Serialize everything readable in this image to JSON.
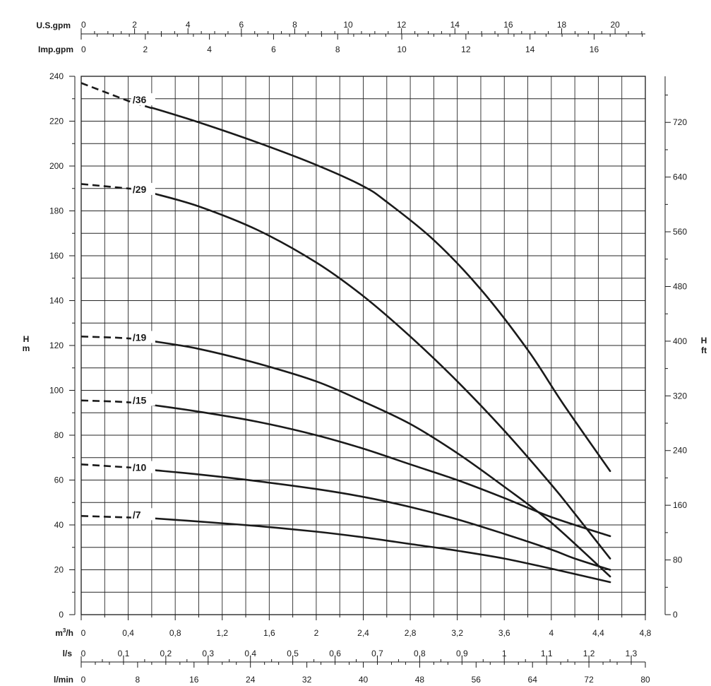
{
  "chart_data": {
    "type": "line",
    "axes": {
      "us_gpm": {
        "label": "U.S.gpm",
        "ticks": [
          "0",
          "2",
          "4",
          "6",
          "8",
          "10",
          "12",
          "14",
          "16",
          "18",
          "20"
        ]
      },
      "imp_gpm": {
        "label": "Imp.gpm",
        "ticks": [
          "0",
          "2",
          "4",
          "6",
          "8",
          "10",
          "12",
          "14",
          "16"
        ]
      },
      "x": {
        "label": "m³/h",
        "label_base": "m",
        "label_sup": "3",
        "label_rest": "/h",
        "ticks": [
          "0",
          "0,4",
          "0,8",
          "1,2",
          "1,6",
          "2",
          "2,4",
          "2,8",
          "3,2",
          "3,6",
          "4",
          "4,4",
          "4,8"
        ],
        "range": [
          0,
          4.8
        ]
      },
      "ls": {
        "label": "l/s",
        "ticks": [
          "0",
          "0,1",
          "0,2",
          "0,3",
          "0,4",
          "0,5",
          "0,6",
          "0,7",
          "0,8",
          "0,9",
          "1",
          "1,1",
          "1,2",
          "1,3"
        ]
      },
      "lmin": {
        "label": "l/min",
        "ticks": [
          "0",
          "8",
          "16",
          "24",
          "32",
          "40",
          "48",
          "56",
          "64",
          "72",
          "80"
        ]
      },
      "y": {
        "label_top": "H",
        "label_bottom": "m",
        "ticks": [
          "0",
          "20",
          "40",
          "60",
          "80",
          "100",
          "120",
          "140",
          "160",
          "180",
          "200",
          "220",
          "240"
        ],
        "range": [
          0,
          240
        ]
      },
      "y_ft": {
        "label_top": "H",
        "label_bottom": "ft",
        "ticks": [
          "0",
          "80",
          "160",
          "240",
          "320",
          "400",
          "480",
          "560",
          "640",
          "720"
        ]
      }
    },
    "grid": true,
    "series": [
      {
        "name": "/36",
        "dashed": [
          [
            0,
            237
          ],
          [
            0.2,
            233
          ],
          [
            0.4,
            229
          ],
          [
            0.6,
            225.8
          ]
        ],
        "solid": [
          [
            0.6,
            226
          ],
          [
            1.0,
            219.5
          ],
          [
            1.5,
            210.5
          ],
          [
            2.0,
            200.5
          ],
          [
            2.4,
            191
          ],
          [
            2.6,
            184
          ],
          [
            3.0,
            167
          ],
          [
            3.4,
            145
          ],
          [
            3.8,
            118
          ],
          [
            4.1,
            94
          ],
          [
            4.5,
            64
          ],
          [
            4.5,
            64
          ]
        ],
        "label_at": [
          0.6,
          229
        ]
      },
      {
        "name": "/29",
        "dashed": [
          [
            0,
            192
          ],
          [
            0.3,
            190.5
          ],
          [
            0.6,
            189
          ]
        ],
        "solid": [
          [
            0.6,
            188
          ],
          [
            1.0,
            182
          ],
          [
            1.5,
            171.5
          ],
          [
            2.0,
            157
          ],
          [
            2.4,
            142
          ],
          [
            2.8,
            124
          ],
          [
            3.2,
            104
          ],
          [
            3.6,
            82
          ],
          [
            4.0,
            58
          ],
          [
            4.2,
            45
          ],
          [
            4.5,
            25
          ]
        ],
        "label_at": [
          0.6,
          189
        ]
      },
      {
        "name": "/19",
        "dashed": [
          [
            0,
            124
          ],
          [
            0.3,
            123.5
          ],
          [
            0.6,
            122.5
          ]
        ],
        "solid": [
          [
            0.6,
            122
          ],
          [
            1.0,
            118.5
          ],
          [
            1.5,
            112
          ],
          [
            2.0,
            104
          ],
          [
            2.4,
            95
          ],
          [
            2.8,
            85
          ],
          [
            3.2,
            72
          ],
          [
            3.6,
            57
          ],
          [
            4.0,
            41
          ],
          [
            4.5,
            17
          ]
        ],
        "label_at": [
          0.6,
          123
        ]
      },
      {
        "name": "/15",
        "dashed": [
          [
            0,
            95.5
          ],
          [
            0.3,
            95
          ],
          [
            0.6,
            94
          ]
        ],
        "solid": [
          [
            0.6,
            93.5
          ],
          [
            1.0,
            90.5
          ],
          [
            1.5,
            86
          ],
          [
            2.0,
            80
          ],
          [
            2.4,
            74
          ],
          [
            2.8,
            67
          ],
          [
            3.2,
            60
          ],
          [
            3.6,
            52
          ],
          [
            4.0,
            43.5
          ],
          [
            4.5,
            35
          ]
        ],
        "label_at": [
          0.6,
          95
        ]
      },
      {
        "name": "/10",
        "dashed": [
          [
            0,
            67
          ],
          [
            0.3,
            66
          ],
          [
            0.6,
            65
          ]
        ],
        "solid": [
          [
            0.6,
            64.5
          ],
          [
            1.0,
            62.5
          ],
          [
            1.5,
            59.5
          ],
          [
            2.0,
            56
          ],
          [
            2.4,
            52.5
          ],
          [
            2.8,
            48
          ],
          [
            3.2,
            42.5
          ],
          [
            3.6,
            36
          ],
          [
            4.0,
            29
          ],
          [
            4.2,
            25
          ],
          [
            4.5,
            20
          ]
        ],
        "label_at": [
          0.6,
          65
        ]
      },
      {
        "name": "/7",
        "dashed": [
          [
            0,
            44
          ],
          [
            0.3,
            43.5
          ],
          [
            0.6,
            43
          ]
        ],
        "solid": [
          [
            0.6,
            43
          ],
          [
            1.0,
            41.5
          ],
          [
            1.5,
            39.5
          ],
          [
            2.0,
            37
          ],
          [
            2.4,
            34.5
          ],
          [
            2.8,
            31.5
          ],
          [
            3.2,
            28.5
          ],
          [
            3.6,
            25
          ],
          [
            4.0,
            20.5
          ],
          [
            4.5,
            14.5
          ]
        ],
        "label_at": [
          0.6,
          44
        ]
      }
    ]
  }
}
